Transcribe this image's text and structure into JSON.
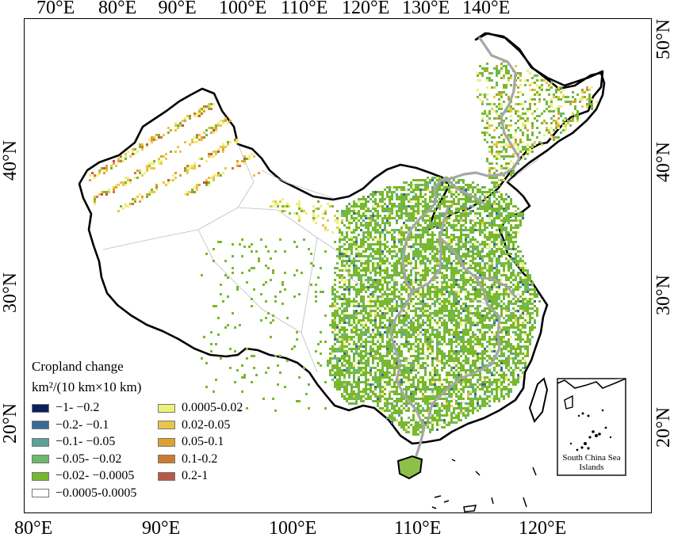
{
  "top_lon_ticks": [
    "70°E",
    "80°E",
    "90°E",
    "100°E",
    "110°E",
    "120°E",
    "130°E",
    "140°E"
  ],
  "bottom_lon_ticks": [
    "80°E",
    "90°E",
    "100°E",
    "110°E",
    "120°E"
  ],
  "left_lat_ticks": [
    "40°N",
    "30°N",
    "20°N"
  ],
  "right_lat_ticks": [
    "50°N",
    "40°N",
    "30°N",
    "20°N"
  ],
  "legend": {
    "title": "Cropland change",
    "unit": "km²/(10 km×10 km)",
    "items": [
      {
        "label": "−1- −0.2",
        "color": "#0b1f5c"
      },
      {
        "label": "−0.2- −0.1",
        "color": "#3a6a94"
      },
      {
        "label": "−0.1- −0.05",
        "color": "#5f9f9c"
      },
      {
        "label": "−0.05- −0.02",
        "color": "#6db86a"
      },
      {
        "label": "−0.02- −0.0005",
        "color": "#78b82c"
      },
      {
        "label": "−0.0005-0.0005",
        "color": "#ffffff"
      },
      {
        "label": "0.0005-0.02",
        "color": "#eef07a"
      },
      {
        "label": "0.02-0.05",
        "color": "#e7c64a"
      },
      {
        "label": "0.05-0.1",
        "color": "#e0a030"
      },
      {
        "label": "0.1-0.2",
        "color": "#cc7a2e"
      },
      {
        "label": "0.2-1",
        "color": "#b8584a"
      }
    ]
  },
  "inset_label": "South China Sea Islands",
  "colors": {
    "border": "#000000",
    "climate_zone_lines": "#a6a6a6",
    "province_lines": "#bdbdbd"
  }
}
